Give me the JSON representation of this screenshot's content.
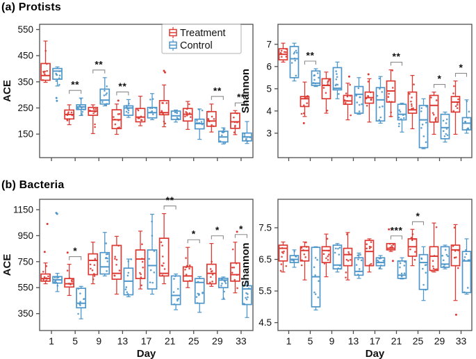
{
  "page": {
    "section_a_title": "(a) Protists",
    "section_b_title": "(b) Bacteria"
  },
  "colors": {
    "treatment": "#dd3831",
    "control": "#4e96c9",
    "frame": "#4d4d4d",
    "text": "#111111",
    "sig_bracket": "#8a8a8a",
    "legend_border": "#b0b0b0"
  },
  "legend": {
    "entries": [
      {
        "label": "Treatment",
        "series": "Treatment"
      },
      {
        "label": "Control",
        "series": "Control"
      }
    ]
  },
  "chart_data": [
    {
      "id": "protists-ace",
      "type": "boxplot",
      "ylabel": "ACE",
      "xlabel": "",
      "ylim": [
        60,
        570
      ],
      "yticks": [
        150,
        250,
        350,
        450,
        550
      ],
      "categories": [
        "1",
        "5",
        "9",
        "13",
        "17",
        "21",
        "25",
        "29",
        "33"
      ],
      "show_x_tick_labels": false,
      "legend_position": "top-right",
      "series": [
        {
          "name": "Treatment",
          "boxes": [
            [
              348,
              356,
              374,
              420,
              506
            ],
            [
              186,
              208,
              225,
              242,
              262
            ],
            [
              152,
              222,
              238,
              252,
              262
            ],
            [
              149,
              171,
              205,
              243,
              265
            ],
            [
              182,
              197,
              215,
              248,
              295
            ],
            [
              178,
              224,
              232,
              278,
              338
            ],
            [
              168,
              200,
              226,
              248,
              275
            ],
            [
              158,
              180,
              200,
              236,
              265
            ],
            [
              148,
              172,
              197,
              230,
              240
            ]
          ],
          "outliers": [
            [],
            [],
            [],
            [
              278
            ],
            [],
            [
              392,
              386
            ],
            [],
            [],
            []
          ]
        },
        {
          "name": "Control",
          "boxes": [
            [
              334,
              360,
              391,
              401,
              407
            ],
            [
              221,
              244,
              254,
              262,
              288
            ],
            [
              258,
              265,
              280,
              322,
              366
            ],
            [
              214,
              222,
              250,
              258,
              282
            ],
            [
              205,
              212,
              232,
              252,
              305
            ],
            [
              196,
              206,
              220,
              238,
              242
            ],
            [
              130,
              170,
              190,
              207,
              246
            ],
            [
              112,
              120,
              139,
              161,
              174
            ],
            [
              114,
              124,
              139,
              154,
              198
            ]
          ],
          "outliers": [
            [
              288,
              277
            ],
            [],
            [],
            [],
            [],
            [],
            [],
            [],
            []
          ]
        }
      ],
      "significance": [
        {
          "day": "5",
          "label": "**"
        },
        {
          "day": "9",
          "label": "**"
        },
        {
          "day": "13",
          "label": "**"
        },
        {
          "day": "29",
          "label": "**"
        },
        {
          "day": "33",
          "label": "**"
        }
      ]
    },
    {
      "id": "protists-shannon",
      "type": "boxplot",
      "ylabel": "Shannon",
      "xlabel": "",
      "ylim": [
        1.9,
        7.9
      ],
      "yticks": [
        3,
        4,
        5,
        6,
        7
      ],
      "categories": [
        "1",
        "5",
        "9",
        "13",
        "17",
        "21",
        "25",
        "29",
        "33"
      ],
      "show_x_tick_labels": false,
      "legend_position": null,
      "series": [
        {
          "name": "Treatment",
          "boxes": [
            [
              6.2,
              6.3,
              6.55,
              6.8,
              7.05
            ],
            [
              3.75,
              4.2,
              4.55,
              4.65,
              5.3
            ],
            [
              3.9,
              4.55,
              5.15,
              5.45,
              5.75
            ],
            [
              3.6,
              4.3,
              4.45,
              4.7,
              5.25
            ],
            [
              3.5,
              4.35,
              4.6,
              4.85,
              5.45
            ],
            [
              3.75,
              4.4,
              4.9,
              5.35,
              5.85
            ],
            [
              3.2,
              3.9,
              4.05,
              4.85,
              5.6
            ],
            [
              2.95,
              3.5,
              4.25,
              4.7,
              4.85
            ],
            [
              2.95,
              3.95,
              4.4,
              4.65,
              5.35
            ]
          ],
          "outliers": [
            [],
            [
              3.45
            ],
            [],
            [
              5.55
            ],
            [
              5.65
            ],
            [],
            [],
            [],
            []
          ]
        },
        {
          "name": "Control",
          "boxes": [
            [
              5.35,
              5.5,
              6.35,
              6.9,
              7.05
            ],
            [
              5.1,
              5.15,
              5.25,
              5.8,
              5.9
            ],
            [
              4.55,
              4.95,
              5.02,
              5.95,
              6.2
            ],
            [
              3.85,
              3.9,
              4.75,
              5.1,
              5.5
            ],
            [
              3.45,
              3.55,
              4.5,
              5.05,
              5.55
            ],
            [
              3.05,
              3.6,
              3.85,
              4.3,
              4.35
            ],
            [
              2.3,
              2.35,
              3.6,
              4.25,
              4.55
            ],
            [
              2.6,
              2.75,
              3.25,
              3.85,
              3.95
            ],
            [
              3.0,
              3.15,
              3.45,
              3.7,
              4.5
            ]
          ],
          "outliers": [
            [],
            [],
            [],
            [],
            [],
            [],
            [],
            [],
            []
          ]
        }
      ],
      "significance": [
        {
          "day": "5",
          "label": "**"
        },
        {
          "day": "21",
          "label": "**"
        },
        {
          "day": "29",
          "label": "*"
        },
        {
          "day": "33",
          "label": "*"
        }
      ]
    },
    {
      "id": "bacteria-ace",
      "type": "boxplot",
      "ylabel": "ACE",
      "xlabel": "Day",
      "ylim": [
        220,
        1230
      ],
      "yticks": [
        350,
        550,
        750,
        950,
        1150
      ],
      "categories": [
        "1",
        "5",
        "9",
        "13",
        "17",
        "21",
        "25",
        "29",
        "33"
      ],
      "show_x_tick_labels": true,
      "legend_position": null,
      "series": [
        {
          "name": "Treatment",
          "boxes": [
            [
              580,
              600,
              620,
              655,
              740
            ],
            [
              490,
              555,
              580,
              620,
              730
            ],
            [
              580,
              650,
              760,
              810,
              900
            ],
            [
              500,
              615,
              660,
              875,
              945
            ],
            [
              540,
              620,
              770,
              840,
              985
            ],
            [
              580,
              640,
              660,
              930,
              1120
            ],
            [
              550,
              600,
              640,
              710,
              860
            ],
            [
              560,
              580,
              660,
              730,
              890
            ],
            [
              510,
              600,
              650,
              740,
              900
            ]
          ],
          "outliers": [
            [
              1040,
              825
            ],
            [
              820
            ],
            [],
            [],
            [],
            [],
            [],
            [],
            [
              980
            ]
          ]
        },
        {
          "name": "Control",
          "boxes": [
            [
              520,
              585,
              610,
              635,
              660
            ],
            [
              310,
              395,
              430,
              545,
              560
            ],
            [
              640,
              655,
              710,
              820,
              975
            ],
            [
              480,
              495,
              600,
              700,
              770
            ],
            [
              500,
              540,
              720,
              840,
              1115
            ],
            [
              380,
              420,
              490,
              640,
              655
            ],
            [
              360,
              430,
              590,
              620,
              635
            ],
            [
              460,
              550,
              608,
              622,
              632
            ],
            [
              320,
              420,
              540,
              565,
              600
            ]
          ],
          "outliers": [
            [
              1125,
              1118
            ],
            [],
            [],
            [],
            [],
            [],
            [],
            [],
            []
          ]
        }
      ],
      "significance": [
        {
          "day": "5",
          "label": "*"
        },
        {
          "day": "21",
          "label": "**"
        },
        {
          "day": "25",
          "label": "*"
        },
        {
          "day": "29",
          "label": "*"
        },
        {
          "day": "33",
          "label": "*"
        }
      ]
    },
    {
      "id": "bacteria-shannon",
      "type": "boxplot",
      "ylabel": "Shannon",
      "xlabel": "Day",
      "ylim": [
        4.25,
        8.4
      ],
      "yticks": [
        4.5,
        5.5,
        6.5,
        7.5
      ],
      "categories": [
        "1",
        "5",
        "9",
        "13",
        "17",
        "21",
        "25",
        "29",
        "33"
      ],
      "show_x_tick_labels": true,
      "legend_position": null,
      "series": [
        {
          "name": "Treatment",
          "boxes": [
            [
              6.1,
              6.45,
              6.85,
              6.95,
              7.05
            ],
            [
              5.85,
              6.45,
              6.78,
              6.9,
              7.05
            ],
            [
              5.95,
              6.4,
              6.78,
              6.9,
              7.3
            ],
            [
              5.85,
              6.3,
              6.65,
              6.85,
              7.35
            ],
            [
              6.1,
              6.3,
              6.75,
              7.1,
              7.15
            ],
            [
              6.75,
              6.8,
              6.85,
              7.0,
              7.0
            ],
            [
              6.3,
              6.6,
              6.9,
              7.15,
              7.45
            ],
            [
              6.1,
              6.15,
              6.6,
              6.9,
              7.65
            ],
            [
              5.2,
              6.3,
              6.8,
              6.95,
              7.6
            ]
          ],
          "outliers": [
            [],
            [],
            [],
            [],
            [],
            [
              7.45,
              6.45
            ],
            [],
            [],
            [
              4.75
            ]
          ]
        },
        {
          "name": "Control",
          "boxes": [
            [
              6.25,
              6.4,
              6.5,
              6.62,
              6.8
            ],
            [
              4.9,
              5.0,
              5.95,
              6.88,
              6.9
            ],
            [
              6.1,
              6.2,
              6.32,
              6.95,
              7.0
            ],
            [
              5.9,
              6.0,
              6.12,
              6.55,
              6.7
            ],
            [
              6.2,
              6.3,
              6.4,
              6.55,
              6.62
            ],
            [
              5.88,
              5.9,
              6.0,
              6.45,
              6.55
            ],
            [
              5.2,
              5.55,
              6.4,
              6.65,
              6.9
            ],
            [
              6.2,
              6.25,
              6.35,
              6.9,
              6.95
            ],
            [
              5.4,
              5.45,
              6.45,
              6.75,
              7.15
            ]
          ],
          "outliers": [
            [],
            [],
            [],
            [],
            [],
            [],
            [],
            [],
            []
          ]
        }
      ],
      "significance": [
        {
          "day": "21",
          "label": "***"
        },
        {
          "day": "25",
          "label": "*"
        }
      ]
    }
  ]
}
